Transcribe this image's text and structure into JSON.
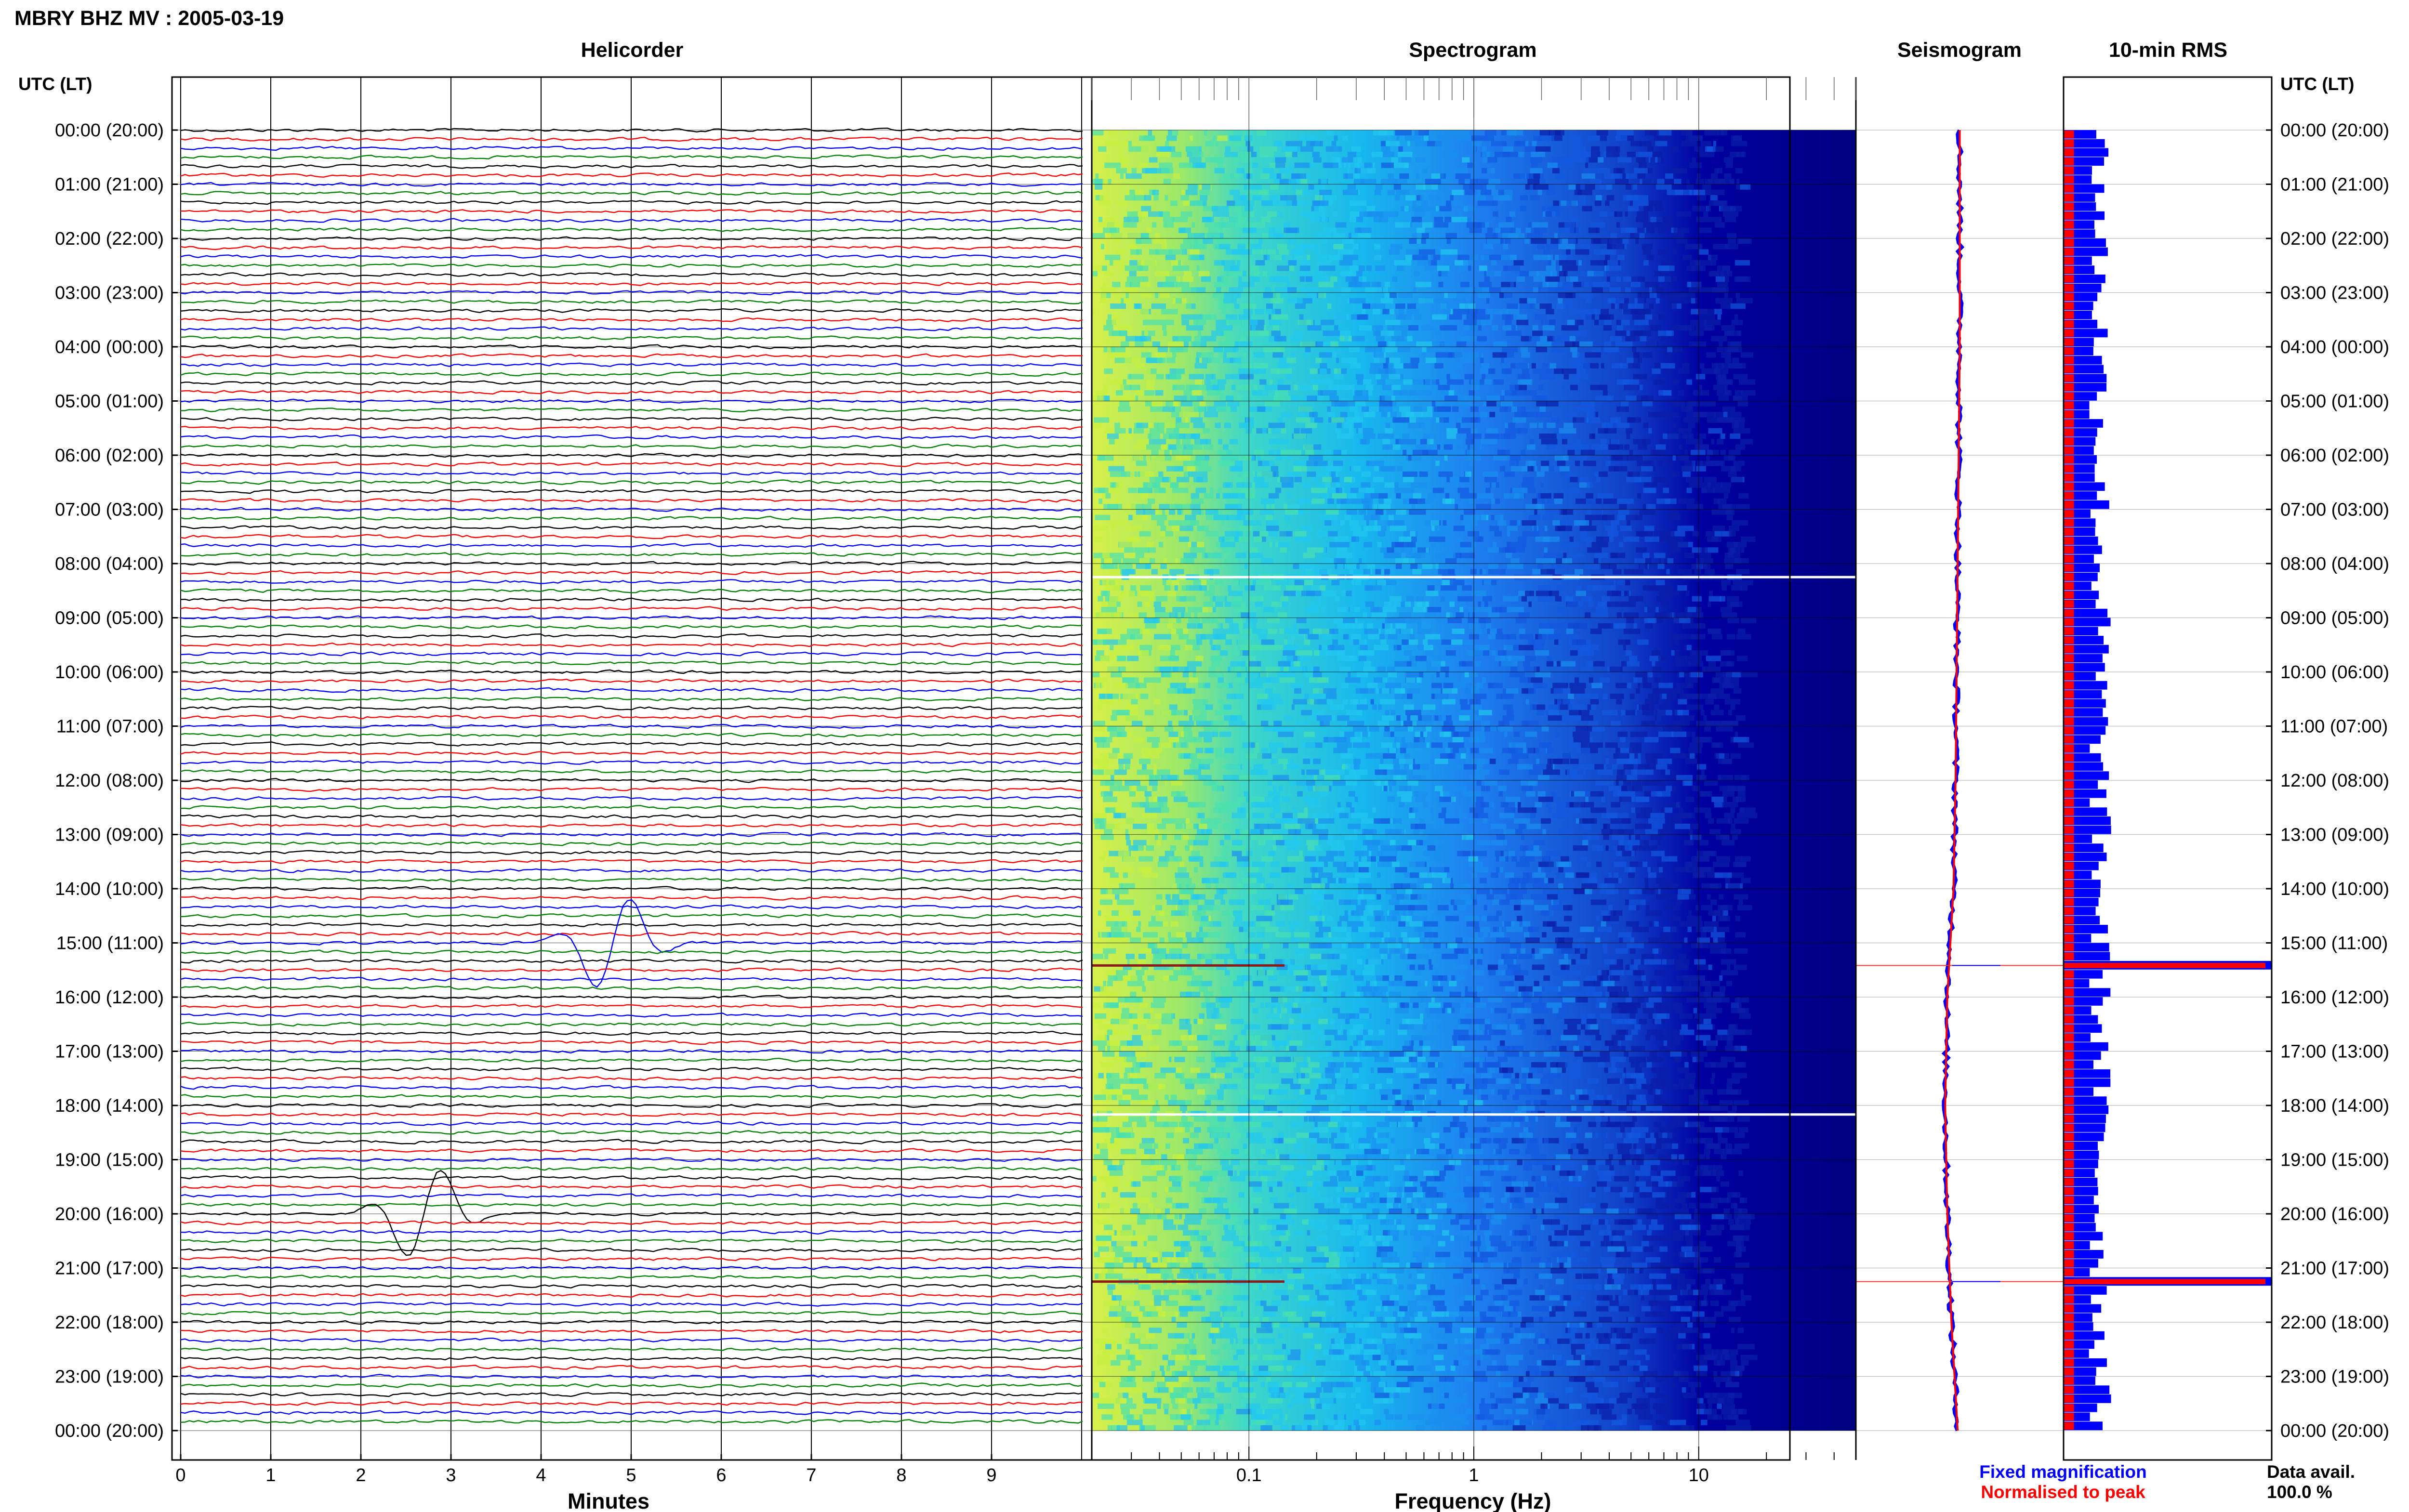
{
  "header": {
    "title": "MBRY BHZ MV : 2005-03-19"
  },
  "panels": {
    "helicorder": "Helicorder",
    "spectrogram": "Spectrogram",
    "seismogram": "Seismogram",
    "rms": "10-min RMS"
  },
  "axes": {
    "time_axis_title": "UTC (LT)",
    "minutes_label": "Minutes",
    "frequency_label": "Frequency (Hz)",
    "minute_ticks": [
      "0",
      "1",
      "2",
      "3",
      "4",
      "5",
      "6",
      "7",
      "8",
      "9"
    ],
    "frequency_ticks": [
      "0.1",
      "1",
      "10"
    ],
    "time_ticks": [
      "00:00 (20:00)",
      "01:00 (21:00)",
      "02:00 (22:00)",
      "03:00 (23:00)",
      "04:00 (00:00)",
      "05:00 (01:00)",
      "06:00 (02:00)",
      "07:00 (03:00)",
      "08:00 (04:00)",
      "09:00 (05:00)",
      "10:00 (06:00)",
      "11:00 (07:00)",
      "12:00 (08:00)",
      "13:00 (09:00)",
      "14:00 (10:00)",
      "15:00 (11:00)",
      "16:00 (12:00)",
      "17:00 (13:00)",
      "18:00 (14:00)",
      "19:00 (15:00)",
      "20:00 (16:00)",
      "21:00 (17:00)",
      "22:00 (18:00)",
      "23:00 (19:00)",
      "00:00 (20:00)"
    ]
  },
  "legend": {
    "fixed": "Fixed magnification",
    "normalised": "Normalised to peak",
    "fixed_color": "#0000ff",
    "normalised_color": "#ff0000"
  },
  "data_availability": {
    "label": "Data avail.",
    "value": "100.0 %"
  },
  "colors": {
    "trace_cycle": [
      "#000000",
      "#ff0000",
      "#0000ff",
      "#008000"
    ],
    "spectrogram_low": "#000080",
    "spectrogram_mid": "#1e90ff",
    "spectrogram_high": "#ffff33",
    "rms_fixed": "#0000ff",
    "rms_normalised": "#ff0000"
  },
  "chart_data": [
    {
      "type": "helicorder",
      "title": "Helicorder",
      "xlabel": "Minutes",
      "x_range": [
        0,
        10
      ],
      "rows_per_hour": 6,
      "hours": 24,
      "events": [
        {
          "start_utc": "15:00",
          "peak_minute": 4.8,
          "label_minute": 4.4
        },
        {
          "start_utc": "20:00",
          "peak_minute": 2.7,
          "label_minute": 2.4
        }
      ]
    },
    {
      "type": "heatmap",
      "title": "Spectrogram",
      "xlabel": "Frequency (Hz)",
      "x_scale": "log",
      "x_range_hz": [
        0.02,
        50
      ],
      "y_range_utc": [
        "00:00",
        "24:00"
      ],
      "data_gaps_utc": [
        "08:15",
        "18:10"
      ]
    },
    {
      "type": "line",
      "title": "Seismogram",
      "series": [
        {
          "name": "Fixed magnification",
          "y_utc_hours": [
            0,
            4,
            8,
            12,
            14,
            16,
            18,
            20,
            22,
            24
          ],
          "x_relative": [
            0.5,
            0.5,
            0.49,
            0.48,
            0.47,
            0.44,
            0.43,
            0.44,
            0.46,
            0.49
          ]
        },
        {
          "name": "Normalised to peak",
          "y_utc_hours": [
            0,
            4,
            8,
            12,
            14,
            16,
            18,
            20,
            22,
            24
          ],
          "x_relative": [
            0.5,
            0.5,
            0.49,
            0.48,
            0.47,
            0.44,
            0.43,
            0.44,
            0.46,
            0.49
          ]
        }
      ],
      "spikes_utc": [
        "15:25",
        "21:15"
      ]
    },
    {
      "type": "bar",
      "title": "10-min RMS",
      "bins_per_hour": 6,
      "hours": 24,
      "typical_fixed_relative": 0.2,
      "typical_normalised_relative": 0.05,
      "peak_bins_utc": [
        "15:20",
        "21:10"
      ],
      "peak_relative": 1.0
    }
  ]
}
